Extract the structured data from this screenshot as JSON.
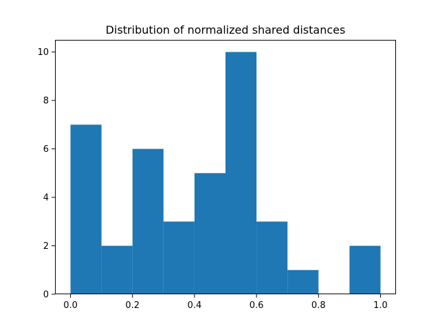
{
  "chart_data": {
    "type": "bar",
    "title": "Distribution of normalized shared distances",
    "xlabel": "",
    "ylabel": "",
    "bin_edges": [
      0.0,
      0.1,
      0.2,
      0.3,
      0.4,
      0.5,
      0.6,
      0.7,
      0.8,
      0.9,
      1.0
    ],
    "values": [
      7,
      2,
      6,
      3,
      5,
      10,
      3,
      1,
      0,
      2
    ],
    "xlim": [
      -0.05,
      1.05
    ],
    "ylim": [
      0,
      10.5
    ],
    "xticks": [
      {
        "value": 0.0,
        "label": "0.0"
      },
      {
        "value": 0.2,
        "label": "0.2"
      },
      {
        "value": 0.4,
        "label": "0.4"
      },
      {
        "value": 0.6,
        "label": "0.6"
      },
      {
        "value": 0.8,
        "label": "0.8"
      },
      {
        "value": 1.0,
        "label": "1.0"
      }
    ],
    "yticks": [
      {
        "value": 0,
        "label": "0"
      },
      {
        "value": 2,
        "label": "2"
      },
      {
        "value": 4,
        "label": "4"
      },
      {
        "value": 6,
        "label": "6"
      },
      {
        "value": 8,
        "label": "8"
      },
      {
        "value": 10,
        "label": "10"
      }
    ],
    "bar_color": "#1f77b4",
    "grid": false,
    "legend": false
  }
}
